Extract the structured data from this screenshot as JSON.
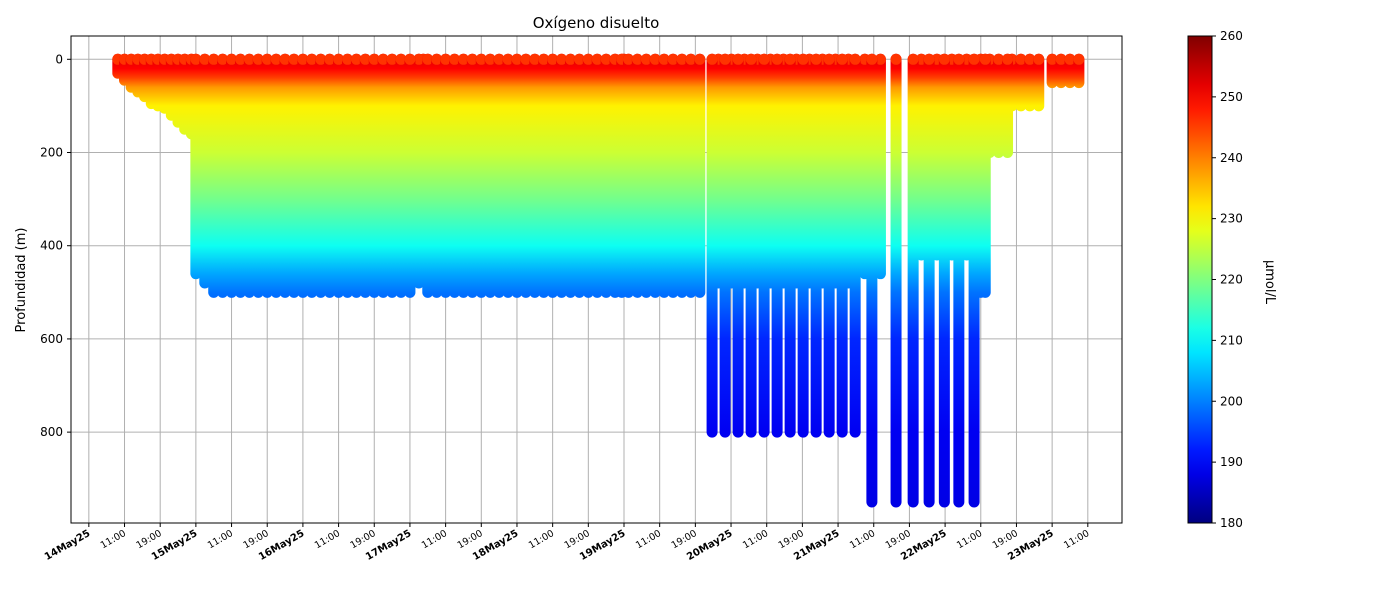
{
  "chart_data": {
    "type": "scatter",
    "title": "Oxígeno disuelto",
    "xlabel": "",
    "ylabel": "Profundidad (m)",
    "colorbar_label": "μmol/L",
    "colormap": "jet",
    "color_range": [
      180,
      260
    ],
    "colorbar_ticks": [
      180,
      190,
      200,
      210,
      220,
      230,
      240,
      250,
      260
    ],
    "xlim": [
      "2025-05-13T20:00",
      "2025-05-23T15:40"
    ],
    "ylim": [
      995,
      -50
    ],
    "y_inverted": true,
    "yticks": [
      0,
      200,
      400,
      600,
      800
    ],
    "grid": true,
    "xticks": [
      {
        "label": "14May25",
        "bold": true
      },
      {
        "label": "11:00"
      },
      {
        "label": "19:00"
      },
      {
        "label": "15May25",
        "bold": true
      },
      {
        "label": "11:00"
      },
      {
        "label": "19:00"
      },
      {
        "label": "16May25",
        "bold": true
      },
      {
        "label": "11:00"
      },
      {
        "label": "19:00"
      },
      {
        "label": "17May25",
        "bold": true
      },
      {
        "label": "11:00"
      },
      {
        "label": "19:00"
      },
      {
        "label": "18May25",
        "bold": true
      },
      {
        "label": "11:00"
      },
      {
        "label": "19:00"
      },
      {
        "label": "19May25",
        "bold": true
      },
      {
        "label": "11:00"
      },
      {
        "label": "19:00"
      },
      {
        "label": "20May25",
        "bold": true
      },
      {
        "label": "11:00"
      },
      {
        "label": "19:00"
      },
      {
        "label": "21May25",
        "bold": true
      },
      {
        "label": "11:00"
      },
      {
        "label": "19:00"
      },
      {
        "label": "22May25",
        "bold": true
      },
      {
        "label": "11:00"
      },
      {
        "label": "19:00"
      },
      {
        "label": "23May25",
        "bold": true
      },
      {
        "label": "11:00"
      }
    ],
    "oxygen_vs_depth": [
      [
        0,
        252
      ],
      [
        20,
        250
      ],
      [
        40,
        245
      ],
      [
        60,
        238
      ],
      [
        100,
        231
      ],
      [
        200,
        226
      ],
      [
        300,
        219
      ],
      [
        400,
        211
      ],
      [
        460,
        203
      ],
      [
        500,
        199
      ],
      [
        600,
        193
      ],
      [
        800,
        189
      ],
      [
        950,
        188
      ]
    ],
    "profiles": [
      [
        "2025-05-14T06:30",
        30
      ],
      [
        "2025-05-14T08:00",
        45
      ],
      [
        "2025-05-14T09:30",
        60
      ],
      [
        "2025-05-14T11:00",
        70
      ],
      [
        "2025-05-14T12:30",
        80
      ],
      [
        "2025-05-14T14:00",
        95
      ],
      [
        "2025-05-14T15:30",
        100
      ],
      [
        "2025-05-14T17:00",
        105
      ],
      [
        "2025-05-14T18:30",
        120
      ],
      [
        "2025-05-14T20:00",
        135
      ],
      [
        "2025-05-14T21:30",
        150
      ],
      [
        "2025-05-14T23:00",
        160
      ],
      [
        "2025-05-15T00:00",
        460
      ],
      [
        "2025-05-15T02:00",
        480
      ],
      [
        "2025-05-15T04:00",
        500
      ],
      [
        "2025-05-15T06:00",
        500
      ],
      [
        "2025-05-15T08:00",
        500
      ],
      [
        "2025-05-15T10:00",
        500
      ],
      [
        "2025-05-15T12:00",
        500
      ],
      [
        "2025-05-15T14:00",
        500
      ],
      [
        "2025-05-15T16:00",
        500
      ],
      [
        "2025-05-15T18:00",
        500
      ],
      [
        "2025-05-15T20:00",
        500
      ],
      [
        "2025-05-15T22:00",
        500
      ],
      [
        "2025-05-16T00:00",
        500
      ],
      [
        "2025-05-16T02:00",
        500
      ],
      [
        "2025-05-16T04:00",
        500
      ],
      [
        "2025-05-16T06:00",
        500
      ],
      [
        "2025-05-16T08:00",
        500
      ],
      [
        "2025-05-16T10:00",
        500
      ],
      [
        "2025-05-16T12:00",
        500
      ],
      [
        "2025-05-16T14:00",
        500
      ],
      [
        "2025-05-16T16:00",
        500
      ],
      [
        "2025-05-16T18:00",
        500
      ],
      [
        "2025-05-16T20:00",
        500
      ],
      [
        "2025-05-16T22:00",
        500
      ],
      [
        "2025-05-17T00:00",
        500
      ],
      [
        "2025-05-17T02:00",
        480
      ],
      [
        "2025-05-17T03:00",
        230
      ],
      [
        "2025-05-17T04:00",
        500
      ],
      [
        "2025-05-17T06:00",
        500
      ],
      [
        "2025-05-17T08:00",
        500
      ],
      [
        "2025-05-17T10:00",
        500
      ],
      [
        "2025-05-17T12:00",
        500
      ],
      [
        "2025-05-17T14:00",
        500
      ],
      [
        "2025-05-17T16:00",
        500
      ],
      [
        "2025-05-17T18:00",
        500
      ],
      [
        "2025-05-17T20:00",
        500
      ],
      [
        "2025-05-17T22:00",
        500
      ],
      [
        "2025-05-18T00:00",
        500
      ],
      [
        "2025-05-18T02:00",
        500
      ],
      [
        "2025-05-18T04:00",
        500
      ],
      [
        "2025-05-18T06:00",
        500
      ],
      [
        "2025-05-18T08:00",
        500
      ],
      [
        "2025-05-18T10:00",
        500
      ],
      [
        "2025-05-18T12:00",
        500
      ],
      [
        "2025-05-18T14:00",
        500
      ],
      [
        "2025-05-18T16:00",
        500
      ],
      [
        "2025-05-18T18:00",
        500
      ],
      [
        "2025-05-18T20:00",
        500
      ],
      [
        "2025-05-18T22:00",
        500
      ],
      [
        "2025-05-18T23:30",
        500
      ],
      [
        "2025-05-19T00:00",
        270
      ],
      [
        "2025-05-19T01:00",
        500
      ],
      [
        "2025-05-19T03:00",
        500
      ],
      [
        "2025-05-19T05:00",
        500
      ],
      [
        "2025-05-19T07:00",
        500
      ],
      [
        "2025-05-19T09:00",
        500
      ],
      [
        "2025-05-19T11:00",
        500
      ],
      [
        "2025-05-19T13:00",
        500
      ],
      [
        "2025-05-19T15:00",
        500
      ],
      [
        "2025-05-19T17:00",
        500
      ],
      [
        "2025-05-19T21:10",
        480
      ],
      [
        "2025-05-20T00:05",
        480
      ],
      [
        "2025-05-20T03:00",
        480
      ],
      [
        "2025-05-20T05:55",
        480
      ],
      [
        "2025-05-20T08:50",
        480
      ],
      [
        "2025-05-20T11:45",
        480
      ],
      [
        "2025-05-20T14:40",
        480
      ],
      [
        "2025-05-20T17:35",
        480
      ],
      [
        "2025-05-20T20:30",
        480
      ],
      [
        "2025-05-20T23:25",
        480
      ],
      [
        "2025-05-21T02:20",
        480
      ],
      [
        "2025-05-19T19:45",
        800
      ],
      [
        "2025-05-19T22:40",
        800
      ],
      [
        "2025-05-20T01:35",
        800
      ],
      [
        "2025-05-20T04:30",
        800
      ],
      [
        "2025-05-20T07:25",
        800
      ],
      [
        "2025-05-20T10:20",
        800
      ],
      [
        "2025-05-20T13:15",
        800
      ],
      [
        "2025-05-20T16:10",
        800
      ],
      [
        "2025-05-20T19:05",
        800
      ],
      [
        "2025-05-20T22:00",
        800
      ],
      [
        "2025-05-21T00:55",
        800
      ],
      [
        "2025-05-21T03:50",
        800
      ],
      [
        "2025-05-21T06:00",
        460
      ],
      [
        "2025-05-21T09:30",
        460
      ],
      [
        "2025-05-21T18:40",
        420
      ],
      [
        "2025-05-21T22:10",
        420
      ],
      [
        "2025-05-22T01:30",
        420
      ],
      [
        "2025-05-22T04:50",
        420
      ],
      [
        "2025-05-21T07:35",
        950
      ],
      [
        "2025-05-21T13:00",
        950
      ],
      [
        "2025-05-21T16:50",
        950
      ],
      [
        "2025-05-21T20:25",
        950
      ],
      [
        "2025-05-21T23:50",
        950
      ],
      [
        "2025-05-22T03:05",
        950
      ],
      [
        "2025-05-22T06:30",
        950
      ],
      [
        "2025-05-22T08:00",
        500
      ],
      [
        "2025-05-22T09:00",
        500
      ],
      [
        "2025-05-22T10:00",
        200
      ],
      [
        "2025-05-22T12:00",
        200
      ],
      [
        "2025-05-22T14:00",
        200
      ],
      [
        "2025-05-22T15:00",
        100
      ],
      [
        "2025-05-22T17:00",
        100
      ],
      [
        "2025-05-22T19:00",
        100
      ],
      [
        "2025-05-22T21:00",
        100
      ],
      [
        "2025-05-23T00:00",
        50
      ],
      [
        "2025-05-23T02:00",
        50
      ],
      [
        "2025-05-23T04:00",
        50
      ],
      [
        "2025-05-23T06:00",
        50
      ]
    ]
  }
}
